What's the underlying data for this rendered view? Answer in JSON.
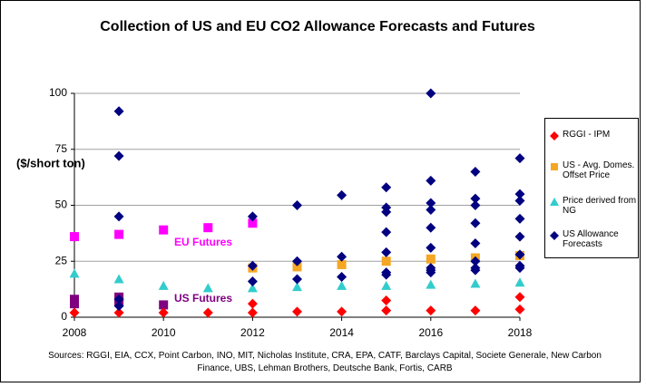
{
  "chart_data": {
    "type": "scatter",
    "title": "Collection of US and EU CO2 Allowance Forecasts and Futures",
    "y_label": "($/short ton)",
    "source": "Sources: RGGI, EIA, CCX, Point Carbon, INO, MIT, Nicholas Institute, CRA, EPA, CATF, Barclays Capital, Societe Generale, New Carbon Finance, UBS, Lehman Brothers, Deutsche Bank, Fortis, CARB",
    "xlim": [
      2008,
      2018
    ],
    "xticks": [
      2008,
      2010,
      2012,
      2014,
      2016,
      2018
    ],
    "ylim": [
      0,
      100
    ],
    "yticks": [
      0,
      25,
      50,
      75,
      100
    ],
    "grid": true,
    "series": [
      {
        "name": "RGGI - IPM",
        "color": "#ff0000",
        "marker": "diamond",
        "x": [
          2008,
          2009,
          2010,
          2011,
          2012,
          2012,
          2013,
          2014,
          2015,
          2015,
          2016,
          2017,
          2018,
          2018
        ],
        "values": [
          2,
          2,
          2,
          2,
          2,
          6,
          2.5,
          2.5,
          3,
          7.5,
          3,
          3,
          3.5,
          9
        ]
      },
      {
        "name": "US - Avg. Domes. Offset Price",
        "color": "#f5a623",
        "marker": "square",
        "x": [
          2012,
          2013,
          2014,
          2015,
          2016,
          2017,
          2018
        ],
        "values": [
          22,
          22.5,
          23.5,
          25,
          26,
          26.5,
          27.5
        ]
      },
      {
        "name": "Price derived from NG",
        "color": "#33cccc",
        "marker": "triangle",
        "x": [
          2008,
          2009,
          2010,
          2011,
          2012,
          2013,
          2014,
          2015,
          2016,
          2017,
          2018
        ],
        "values": [
          19.5,
          17,
          14,
          13,
          13,
          13.5,
          14,
          14,
          14.5,
          15,
          15.5
        ]
      },
      {
        "name": "US Allowance Forecasts",
        "color": "#000080",
        "marker": "diamond",
        "x": [
          2009,
          2009,
          2009,
          2009,
          2009,
          2012,
          2012,
          2012,
          2013,
          2013,
          2013,
          2014,
          2014,
          2014,
          2015,
          2015,
          2015,
          2015,
          2015,
          2015,
          2015,
          2016,
          2016,
          2016,
          2016,
          2016,
          2016,
          2016,
          2016,
          2016,
          2017,
          2017,
          2017,
          2017,
          2017,
          2017,
          2017,
          2017,
          2018,
          2018,
          2018,
          2018,
          2018,
          2018,
          2018,
          2018
        ],
        "values": [
          92,
          72,
          45,
          8,
          5,
          45,
          23,
          16,
          50,
          25,
          17,
          54.5,
          27,
          18,
          58,
          49,
          47,
          38,
          29,
          20,
          19,
          100,
          61,
          51,
          48,
          40,
          31,
          22,
          21,
          20,
          65,
          53,
          50,
          42,
          33,
          25,
          22,
          21,
          71,
          55,
          52,
          44,
          36,
          28,
          23,
          22
        ]
      }
    ],
    "annotations": [
      {
        "text": "EU Futures",
        "color": "#ff00ff",
        "marker": "square",
        "x": [
          2008,
          2009,
          2010,
          2011,
          2012
        ],
        "values": [
          36,
          37,
          39,
          40,
          42
        ]
      },
      {
        "text": "US Futures",
        "color": "#800080",
        "marker": "square",
        "x": [
          2008,
          2008,
          2009,
          2009,
          2010
        ],
        "values": [
          8,
          6,
          9,
          7,
          5.5
        ]
      }
    ]
  }
}
